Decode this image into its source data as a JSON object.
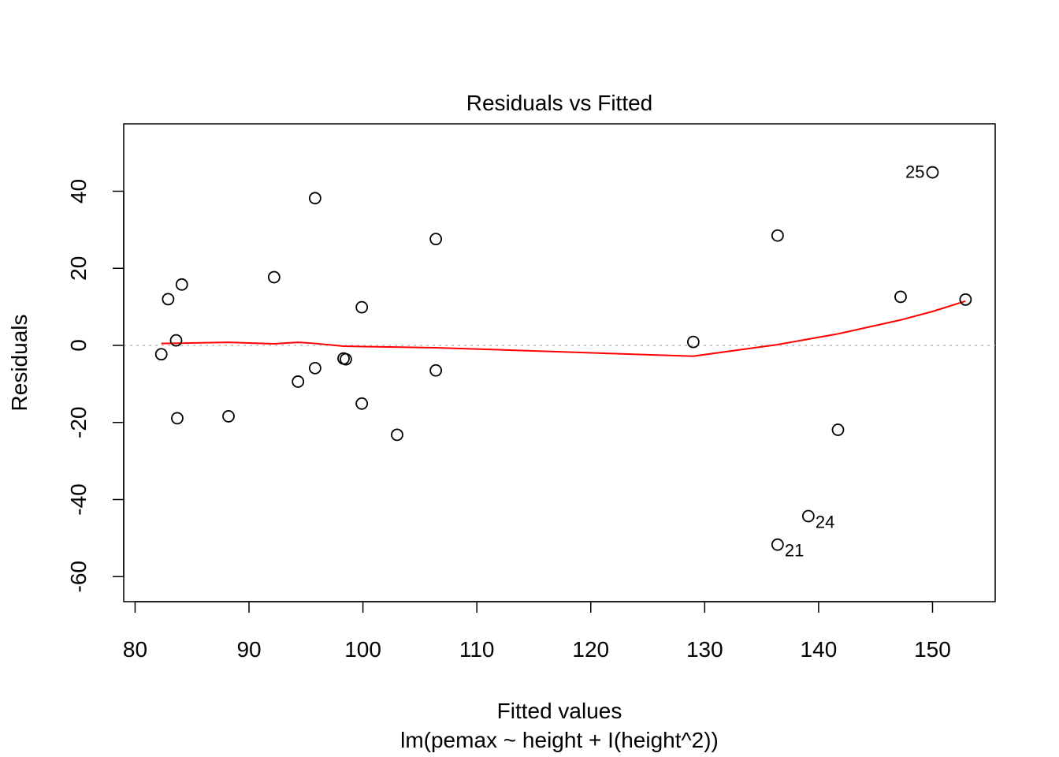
{
  "chart_data": {
    "type": "scatter",
    "title": "Residuals vs Fitted",
    "xlabel": "Fitted values",
    "subtitle": "lm(pemax ~ height + I(height^2))",
    "ylabel": "Residuals",
    "xlim": [
      79,
      155.5
    ],
    "ylim": [
      -66.5,
      57.5
    ],
    "xticks": [
      80,
      90,
      100,
      110,
      120,
      130,
      140,
      150
    ],
    "yticks": [
      -60,
      -40,
      -20,
      0,
      20,
      40
    ],
    "reference_line": {
      "y": 0,
      "style": "dotted",
      "color": "#bebebe"
    },
    "points": [
      {
        "x": 82.3,
        "y": -2.3
      },
      {
        "x": 82.9,
        "y": 12.0
      },
      {
        "x": 83.6,
        "y": 1.3
      },
      {
        "x": 83.7,
        "y": -18.9
      },
      {
        "x": 84.1,
        "y": 15.8
      },
      {
        "x": 88.2,
        "y": -18.4
      },
      {
        "x": 92.2,
        "y": 17.7
      },
      {
        "x": 94.3,
        "y": -9.4
      },
      {
        "x": 95.8,
        "y": 38.2
      },
      {
        "x": 95.8,
        "y": -5.9
      },
      {
        "x": 98.3,
        "y": -3.4
      },
      {
        "x": 98.5,
        "y": -3.6
      },
      {
        "x": 99.9,
        "y": 9.9
      },
      {
        "x": 99.9,
        "y": -15.1
      },
      {
        "x": 103.0,
        "y": -23.2
      },
      {
        "x": 106.4,
        "y": 27.6
      },
      {
        "x": 106.4,
        "y": -6.5
      },
      {
        "x": 129.0,
        "y": 0.9
      },
      {
        "x": 136.4,
        "y": 28.5
      },
      {
        "x": 136.4,
        "y": -51.7,
        "label": "21"
      },
      {
        "x": 139.1,
        "y": -44.3,
        "label": "24"
      },
      {
        "x": 141.7,
        "y": -21.9
      },
      {
        "x": 147.2,
        "y": 12.6
      },
      {
        "x": 150.0,
        "y": 44.9,
        "label": "25"
      },
      {
        "x": 152.9,
        "y": 11.9
      }
    ],
    "smooth_line": {
      "color": "#ff0000",
      "points": [
        [
          82.3,
          0.5
        ],
        [
          88.2,
          0.8
        ],
        [
          92.2,
          0.4
        ],
        [
          94.3,
          0.8
        ],
        [
          95.8,
          0.5
        ],
        [
          98.3,
          -0.2
        ],
        [
          100.0,
          -0.3
        ],
        [
          106.4,
          -0.6
        ],
        [
          129.0,
          -2.8
        ],
        [
          136.4,
          0.2
        ],
        [
          141.7,
          3.0
        ],
        [
          147.2,
          6.6
        ],
        [
          150.0,
          8.8
        ],
        [
          152.9,
          11.5
        ]
      ]
    }
  }
}
